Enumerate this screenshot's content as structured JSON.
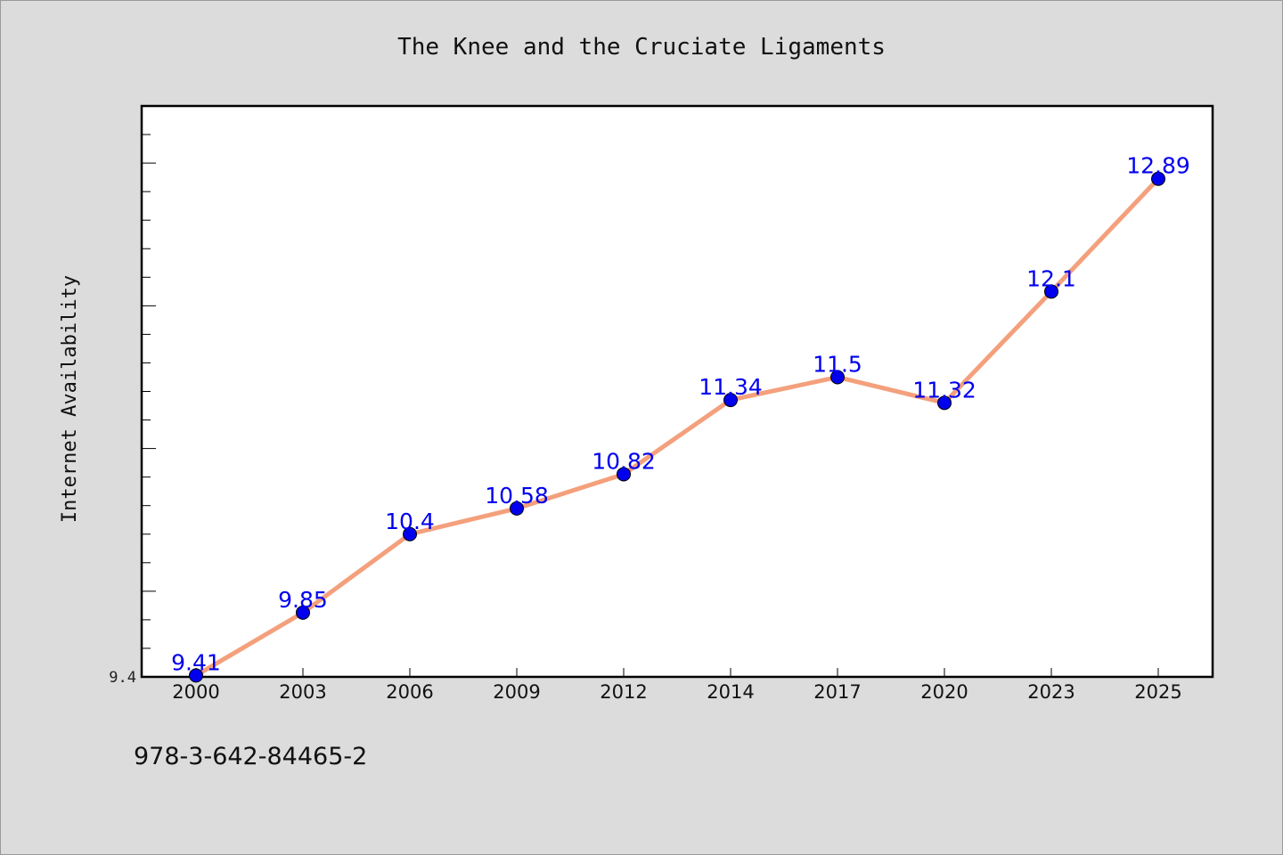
{
  "chart_data": {
    "type": "line",
    "title": "The Knee and the Cruciate Ligaments",
    "ylabel": "Internet Availability",
    "xlabel": "",
    "categories": [
      "2000",
      "2003",
      "2006",
      "2009",
      "2012",
      "2014",
      "2017",
      "2020",
      "2023",
      "2025"
    ],
    "values": [
      9.41,
      9.85,
      10.4,
      10.58,
      10.82,
      11.34,
      11.5,
      11.32,
      12.1,
      12.89
    ],
    "data_labels": [
      "9.41",
      "9.85",
      "10.4",
      "10.58",
      "10.82",
      "11.34",
      "11.5",
      "11.32",
      "12.1",
      "12.89"
    ],
    "ytick_labels": [
      "9.4"
    ],
    "ylim": [
      9.4,
      13.4
    ],
    "grid": false,
    "line_color": "#f4a07c",
    "marker_color": "#0000ee",
    "label_color": "#0000ee",
    "background": "#dcdcdc",
    "plot_background": "#ffffff"
  },
  "footer": {
    "isbn": "978-3-642-84465-2"
  }
}
